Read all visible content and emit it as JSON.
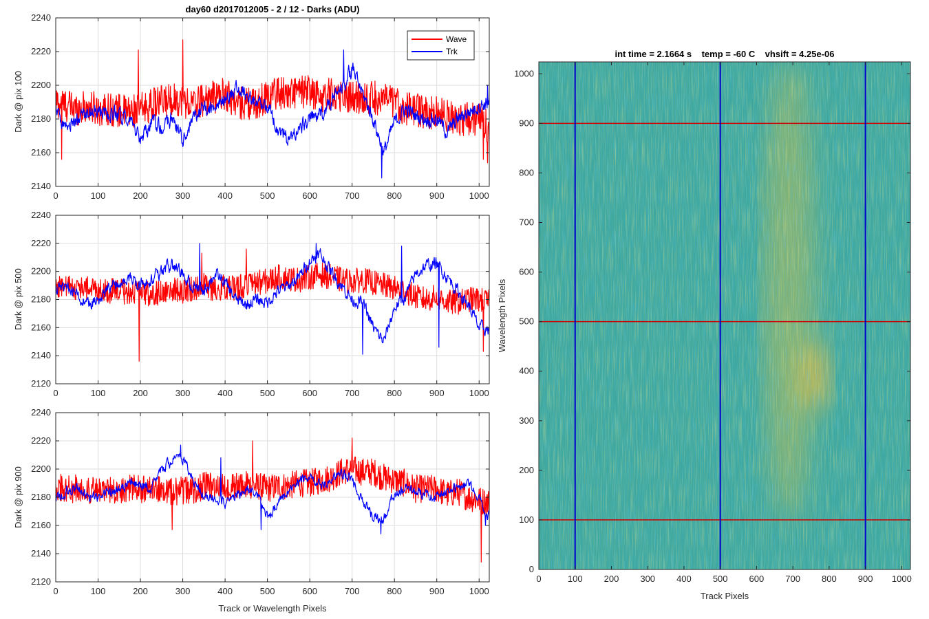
{
  "figure": {
    "suptitle": "day60 d2017012005 - 2 / 12 - Darks (ADU)"
  },
  "chart_data": [
    {
      "type": "line",
      "panel": "top-left",
      "title": "day60 d2017012005 - 2 / 12 - Darks (ADU)",
      "xlabel": "",
      "ylabel": "Dark @ pix 100",
      "xlim": [
        0,
        1024
      ],
      "ylim": [
        2140,
        2240
      ],
      "xticks": [
        0,
        100,
        200,
        300,
        400,
        500,
        600,
        700,
        800,
        900,
        1000
      ],
      "yticks": [
        2140,
        2160,
        2180,
        2200,
        2220,
        2240
      ],
      "grid": true,
      "legend": {
        "position": "top-right",
        "entries": [
          "Wave",
          "Trk"
        ]
      },
      "series": [
        {
          "name": "Wave",
          "color": "#ff0000",
          "x": [
            0,
            25,
            50,
            75,
            100,
            125,
            150,
            175,
            200,
            225,
            250,
            275,
            300,
            325,
            350,
            375,
            400,
            425,
            450,
            475,
            500,
            525,
            550,
            575,
            600,
            625,
            650,
            675,
            700,
            725,
            750,
            775,
            800,
            825,
            850,
            875,
            900,
            925,
            950,
            975,
            1000,
            1024
          ],
          "mean": [
            2190,
            2188,
            2186,
            2187,
            2186,
            2186,
            2185,
            2184,
            2186,
            2188,
            2190,
            2192,
            2191,
            2188,
            2192,
            2193,
            2195,
            2190,
            2189,
            2189,
            2194,
            2196,
            2195,
            2196,
            2196,
            2193,
            2195,
            2194,
            2193,
            2192,
            2193,
            2191,
            2190,
            2186,
            2186,
            2183,
            2184,
            2182,
            2180,
            2180,
            2180,
            2175
          ],
          "noise_amplitude": 10,
          "spikes": [
            [
              195,
              2221
            ],
            [
              300,
              2227
            ],
            [
              14,
              2156
            ],
            [
              1020,
              2154
            ],
            [
              1010,
              2156
            ]
          ]
        },
        {
          "name": "Trk",
          "color": "#0000ff",
          "x": [
            0,
            25,
            50,
            75,
            100,
            125,
            150,
            175,
            200,
            225,
            250,
            275,
            300,
            325,
            350,
            375,
            400,
            425,
            450,
            475,
            500,
            525,
            550,
            575,
            600,
            625,
            650,
            675,
            700,
            725,
            750,
            775,
            800,
            825,
            850,
            875,
            900,
            925,
            950,
            975,
            1000,
            1024
          ],
          "mean": [
            2186,
            2175,
            2180,
            2182,
            2184,
            2182,
            2184,
            2180,
            2166,
            2178,
            2175,
            2180,
            2168,
            2180,
            2186,
            2185,
            2192,
            2198,
            2195,
            2190,
            2188,
            2174,
            2168,
            2174,
            2180,
            2182,
            2190,
            2198,
            2210,
            2195,
            2180,
            2160,
            2178,
            2186,
            2182,
            2180,
            2180,
            2172,
            2180,
            2184,
            2188,
            2190
          ],
          "noise_amplitude": 5,
          "spikes": [
            [
              680,
              2221
            ],
            [
              770,
              2145
            ],
            [
              1020,
              2200
            ]
          ]
        }
      ]
    },
    {
      "type": "line",
      "panel": "middle-left",
      "title": "",
      "xlabel": "",
      "ylabel": "Dark @ pix 500",
      "xlim": [
        0,
        1024
      ],
      "ylim": [
        2120,
        2240
      ],
      "xticks": [
        0,
        100,
        200,
        300,
        400,
        500,
        600,
        700,
        800,
        900,
        1000
      ],
      "yticks": [
        2120,
        2140,
        2160,
        2180,
        2200,
        2220,
        2240
      ],
      "grid": true,
      "series": [
        {
          "name": "Wave",
          "color": "#ff0000",
          "x": [
            0,
            25,
            50,
            75,
            100,
            125,
            150,
            175,
            200,
            225,
            250,
            275,
            300,
            325,
            350,
            375,
            400,
            425,
            450,
            475,
            500,
            525,
            550,
            575,
            600,
            625,
            650,
            675,
            700,
            725,
            750,
            775,
            800,
            825,
            850,
            875,
            900,
            925,
            950,
            975,
            1000,
            1024
          ],
          "mean": [
            2190,
            2189,
            2188,
            2188,
            2187,
            2186,
            2186,
            2185,
            2185,
            2184,
            2185,
            2187,
            2186,
            2188,
            2190,
            2187,
            2189,
            2188,
            2190,
            2192,
            2193,
            2196,
            2195,
            2194,
            2196,
            2198,
            2196,
            2194,
            2193,
            2194,
            2192,
            2190,
            2188,
            2186,
            2182,
            2180,
            2182,
            2178,
            2178,
            2180,
            2180,
            2178
          ],
          "noise_amplitude": 9,
          "spikes": [
            [
              197,
              2136
            ],
            [
              1010,
              2143
            ],
            [
              345,
              2213
            ],
            [
              450,
              2216
            ]
          ]
        },
        {
          "name": "Trk",
          "color": "#0000ff",
          "x": [
            0,
            25,
            50,
            75,
            100,
            125,
            150,
            175,
            200,
            225,
            250,
            275,
            300,
            325,
            350,
            375,
            400,
            425,
            450,
            475,
            500,
            525,
            550,
            575,
            600,
            625,
            650,
            675,
            700,
            725,
            750,
            775,
            800,
            825,
            850,
            875,
            900,
            925,
            950,
            975,
            1000,
            1024
          ],
          "mean": [
            2186,
            2190,
            2184,
            2176,
            2178,
            2188,
            2192,
            2196,
            2190,
            2194,
            2200,
            2204,
            2198,
            2188,
            2186,
            2198,
            2192,
            2180,
            2176,
            2180,
            2178,
            2186,
            2190,
            2196,
            2208,
            2212,
            2200,
            2190,
            2180,
            2178,
            2160,
            2150,
            2174,
            2182,
            2198,
            2204,
            2206,
            2196,
            2186,
            2176,
            2160,
            2158
          ],
          "noise_amplitude": 5,
          "spikes": [
            [
              340,
              2220
            ],
            [
              615,
              2220
            ],
            [
              725,
              2141
            ],
            [
              817,
              2218
            ],
            [
              905,
              2146
            ]
          ]
        }
      ]
    },
    {
      "type": "line",
      "panel": "bottom-left",
      "title": "",
      "xlabel": "Track or Wavelength Pixels",
      "ylabel": "Dark @ pix 900",
      "xlim": [
        0,
        1024
      ],
      "ylim": [
        2120,
        2240
      ],
      "xticks": [
        0,
        100,
        200,
        300,
        400,
        500,
        600,
        700,
        800,
        900,
        1000
      ],
      "yticks": [
        2120,
        2140,
        2160,
        2180,
        2200,
        2220,
        2240
      ],
      "grid": true,
      "series": [
        {
          "name": "Wave",
          "color": "#ff0000",
          "x": [
            0,
            25,
            50,
            75,
            100,
            125,
            150,
            175,
            200,
            225,
            250,
            275,
            300,
            325,
            350,
            375,
            400,
            425,
            450,
            475,
            500,
            525,
            550,
            575,
            600,
            625,
            650,
            675,
            700,
            725,
            750,
            775,
            800,
            825,
            850,
            875,
            900,
            925,
            950,
            975,
            1000,
            1024
          ],
          "mean": [
            2188,
            2186,
            2186,
            2185,
            2184,
            2185,
            2186,
            2186,
            2186,
            2185,
            2186,
            2184,
            2185,
            2185,
            2188,
            2188,
            2187,
            2188,
            2189,
            2188,
            2186,
            2188,
            2188,
            2190,
            2190,
            2192,
            2194,
            2198,
            2200,
            2198,
            2198,
            2194,
            2192,
            2190,
            2186,
            2186,
            2186,
            2182,
            2184,
            2180,
            2178,
            2176
          ],
          "noise_amplitude": 10,
          "spikes": [
            [
              700,
              2222
            ],
            [
              1005,
              2134
            ],
            [
              465,
              2220
            ],
            [
              275,
              2157
            ]
          ]
        },
        {
          "name": "Trk",
          "color": "#0000ff",
          "x": [
            0,
            25,
            50,
            75,
            100,
            125,
            150,
            175,
            200,
            225,
            250,
            275,
            300,
            325,
            350,
            375,
            400,
            425,
            450,
            475,
            500,
            525,
            550,
            575,
            600,
            625,
            650,
            675,
            700,
            725,
            750,
            775,
            800,
            825,
            850,
            875,
            900,
            925,
            950,
            975,
            1000,
            1024
          ],
          "mean": [
            2178,
            2184,
            2186,
            2180,
            2180,
            2184,
            2186,
            2190,
            2188,
            2186,
            2200,
            2206,
            2208,
            2192,
            2182,
            2180,
            2176,
            2180,
            2186,
            2182,
            2165,
            2176,
            2186,
            2190,
            2194,
            2190,
            2192,
            2196,
            2192,
            2178,
            2166,
            2164,
            2182,
            2186,
            2184,
            2182,
            2180,
            2184,
            2188,
            2190,
            2180,
            2166
          ],
          "noise_amplitude": 4,
          "spikes": [
            [
              295,
              2217
            ],
            [
              390,
              2208
            ],
            [
              485,
              2157
            ],
            [
              768,
              2154
            ],
            [
              1015,
              2160
            ]
          ]
        }
      ]
    },
    {
      "type": "heatmap",
      "panel": "right",
      "title": "int time = 2.1664 s    temp = -60 C    vhsift = 4.25e-06",
      "xlabel": "Track Pixels",
      "ylabel": "Wavelength Pixels",
      "xlim": [
        0,
        1024
      ],
      "ylim": [
        0,
        1024
      ],
      "xticks": [
        0,
        100,
        200,
        300,
        400,
        500,
        600,
        700,
        800,
        900,
        1000
      ],
      "yticks": [
        0,
        100,
        200,
        300,
        400,
        500,
        600,
        700,
        800,
        900,
        1000
      ],
      "colormap": "parula",
      "base_color": "#3fa8a0",
      "vertical_lines": {
        "color": "#0000cc",
        "x": [
          100,
          500,
          900
        ]
      },
      "horizontal_lines": {
        "color": "#cc0000",
        "y": [
          100,
          500,
          900
        ]
      },
      "warm_regions": [
        {
          "x": [
            720,
            800
          ],
          "y": [
            320,
            460
          ],
          "color": "#d6b84a"
        },
        {
          "x": [
            620,
            760
          ],
          "y": [
            100,
            1024
          ],
          "color": "#b8bc55"
        }
      ]
    }
  ]
}
